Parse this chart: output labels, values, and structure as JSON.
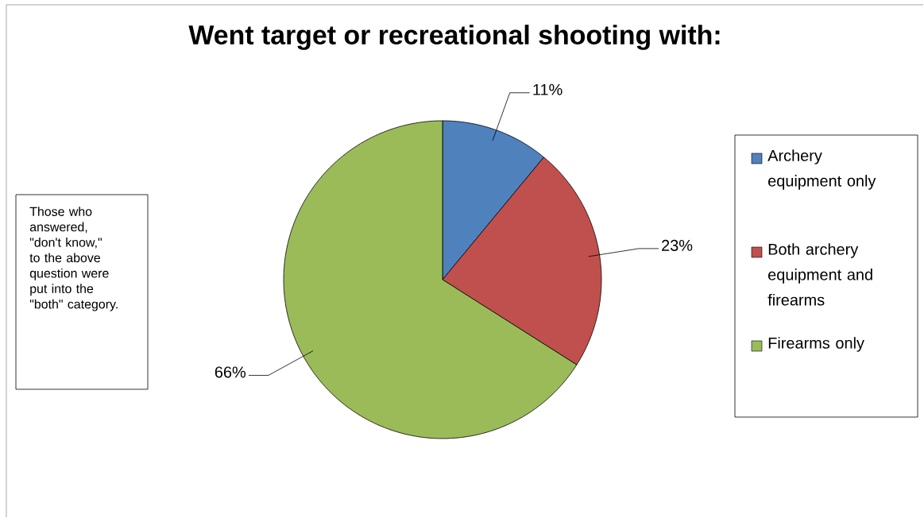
{
  "chart_data": {
    "type": "pie",
    "title": "Went target or recreational shooting with:",
    "categories": [
      "Archery equipment only",
      "Both archery equipment and firearms",
      "Firearms only"
    ],
    "values": [
      11,
      23,
      66
    ],
    "value_labels": [
      "11%",
      "23%",
      "66%"
    ],
    "colors": [
      "#4f81bd",
      "#c0504d",
      "#9bbb59"
    ],
    "legend": "right",
    "annotations": [
      "Those who answered, \"don't know,\" to the above question were put into the \"both\" category."
    ]
  }
}
